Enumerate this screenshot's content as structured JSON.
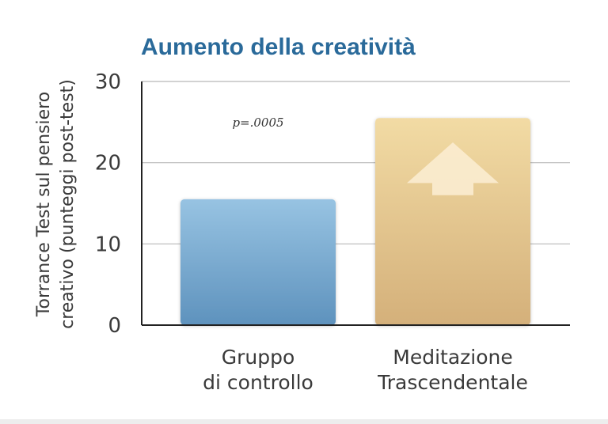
{
  "chart_data": {
    "type": "bar",
    "title": "Aumento della creatività",
    "ylabel": [
      "Torrance Test sul pensiero",
      "creativo (punteggi post-test)"
    ],
    "xlabel": "",
    "ylim": [
      0,
      30
    ],
    "yticks": [
      0,
      10,
      20,
      30
    ],
    "grid": true,
    "categories": [
      [
        "Gruppo",
        "di controllo"
      ],
      [
        "Meditazione",
        "Trascendentale"
      ]
    ],
    "values": [
      15.5,
      25.5
    ],
    "annotation": "p=.0005",
    "arrow_on_bar": "up-arrow-icon",
    "colors": {
      "title": "#2a6a9a",
      "bar1_top": "#97c3e2",
      "bar1_bottom": "#5e92bd",
      "bar2_top": "#f2dba4",
      "bar2_bottom": "#d4b07a",
      "arrow": "#fbecd0",
      "grid": "#b8b8b8",
      "axis": "#222222"
    }
  }
}
